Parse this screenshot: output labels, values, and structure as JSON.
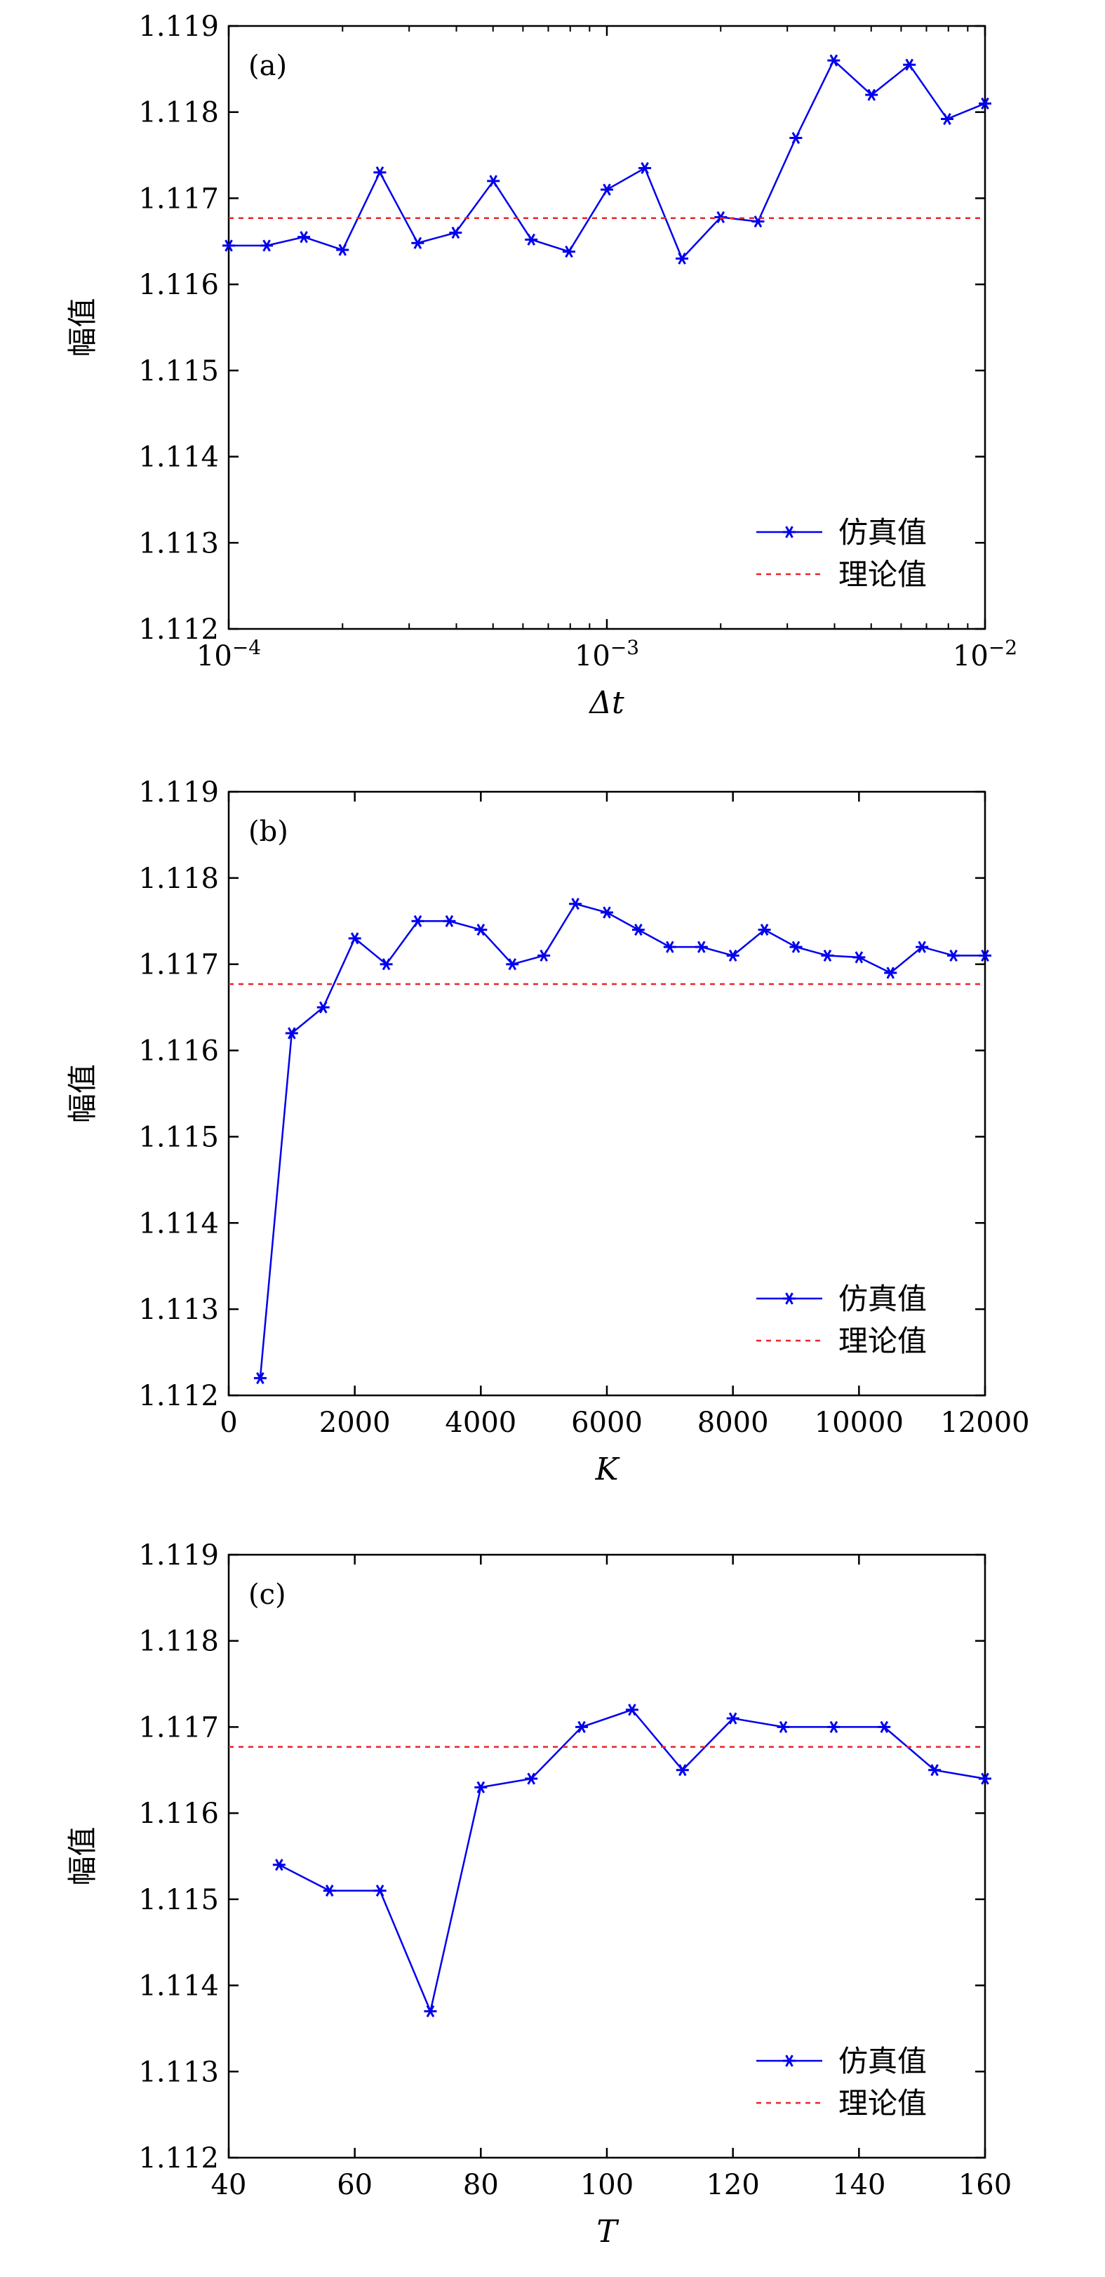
{
  "chart_data": [
    {
      "type": "line",
      "panel_label": "(a)",
      "xlabel": "Δt",
      "ylabel": "幅值",
      "xscale": "log",
      "xlim": [
        0.0001,
        0.01
      ],
      "ylim": [
        1.112,
        1.119
      ],
      "xticks": [
        {
          "value": 0.0001,
          "base": "10",
          "exp": "−4"
        },
        {
          "value": 0.001,
          "base": "10",
          "exp": "−3"
        },
        {
          "value": 0.01,
          "base": "10",
          "exp": "−2"
        }
      ],
      "yticks": [
        "1.112",
        "1.113",
        "1.114",
        "1.115",
        "1.116",
        "1.117",
        "1.118",
        "1.119"
      ],
      "legend_position": "bottom-right",
      "series": [
        {
          "name": "仿真值",
          "color": "#0000ee",
          "style": "solid-star",
          "x": [
            0.0001,
            0.000126,
            0.000158,
            0.0002,
            0.000251,
            0.000316,
            0.000398,
            0.000501,
            0.000631,
            0.000794,
            0.001,
            0.00126,
            0.00158,
            0.002,
            0.00251,
            0.00316,
            0.00398,
            0.00501,
            0.00631,
            0.00794,
            0.01
          ],
          "y": [
            1.11645,
            1.11645,
            1.11655,
            1.1164,
            1.1173,
            1.11648,
            1.1166,
            1.1172,
            1.11652,
            1.11638,
            1.1171,
            1.11735,
            1.1163,
            1.11678,
            1.11673,
            1.1177,
            1.1186,
            1.1182,
            1.11855,
            1.11792,
            1.1181
          ]
        },
        {
          "name": "理论值",
          "color": "#e8262a",
          "style": "dashed",
          "x": [
            0.0001,
            0.01
          ],
          "y": [
            1.11677,
            1.11677
          ]
        }
      ]
    },
    {
      "type": "line",
      "panel_label": "(b)",
      "xlabel": "K",
      "ylabel": "幅值",
      "xscale": "linear",
      "xlim": [
        0,
        12000
      ],
      "ylim": [
        1.112,
        1.119
      ],
      "xticks": [
        {
          "value": 0,
          "label": "0"
        },
        {
          "value": 2000,
          "label": "2000"
        },
        {
          "value": 4000,
          "label": "4000"
        },
        {
          "value": 6000,
          "label": "6000"
        },
        {
          "value": 8000,
          "label": "8000"
        },
        {
          "value": 10000,
          "label": "10000"
        },
        {
          "value": 12000,
          "label": "12000"
        }
      ],
      "yticks": [
        "1.112",
        "1.113",
        "1.114",
        "1.115",
        "1.116",
        "1.117",
        "1.118",
        "1.119"
      ],
      "legend_position": "bottom-right",
      "series": [
        {
          "name": "仿真值",
          "color": "#0000ee",
          "style": "solid-star",
          "x": [
            500,
            1000,
            1500,
            2000,
            2500,
            3000,
            3500,
            4000,
            4500,
            5000,
            5500,
            6000,
            6500,
            7000,
            7500,
            8000,
            8500,
            9000,
            9500,
            10000,
            10500,
            11000,
            11500,
            12000
          ],
          "y": [
            1.1122,
            1.1162,
            1.1165,
            1.1173,
            1.117,
            1.1175,
            1.1175,
            1.1174,
            1.117,
            1.1171,
            1.1177,
            1.1176,
            1.1174,
            1.1172,
            1.1172,
            1.1171,
            1.1174,
            1.1172,
            1.1171,
            1.11708,
            1.1169,
            1.1172,
            1.1171,
            1.1171
          ]
        },
        {
          "name": "理论值",
          "color": "#e8262a",
          "style": "dashed",
          "x": [
            0,
            12000
          ],
          "y": [
            1.11677,
            1.11677
          ]
        }
      ]
    },
    {
      "type": "line",
      "panel_label": "(c)",
      "xlabel": "T",
      "ylabel": "幅值",
      "xscale": "linear",
      "xlim": [
        40,
        160
      ],
      "ylim": [
        1.112,
        1.119
      ],
      "xticks": [
        {
          "value": 40,
          "label": "40"
        },
        {
          "value": 60,
          "label": "60"
        },
        {
          "value": 80,
          "label": "80"
        },
        {
          "value": 100,
          "label": "100"
        },
        {
          "value": 120,
          "label": "120"
        },
        {
          "value": 140,
          "label": "140"
        },
        {
          "value": 160,
          "label": "160"
        }
      ],
      "yticks": [
        "1.112",
        "1.113",
        "1.114",
        "1.115",
        "1.116",
        "1.117",
        "1.118",
        "1.119"
      ],
      "legend_position": "bottom-right",
      "series": [
        {
          "name": "仿真值",
          "color": "#0000ee",
          "style": "solid-star",
          "x": [
            48,
            56,
            64,
            72,
            80,
            88,
            96,
            104,
            112,
            120,
            128,
            136,
            144,
            152,
            160
          ],
          "y": [
            1.1154,
            1.1151,
            1.1151,
            1.1137,
            1.1163,
            1.1164,
            1.117,
            1.1172,
            1.1165,
            1.1171,
            1.117,
            1.117,
            1.117,
            1.1165,
            1.1164
          ]
        },
        {
          "name": "理论值",
          "color": "#e8262a",
          "style": "dashed",
          "x": [
            40,
            160
          ],
          "y": [
            1.11677,
            1.11677
          ]
        }
      ]
    }
  ]
}
